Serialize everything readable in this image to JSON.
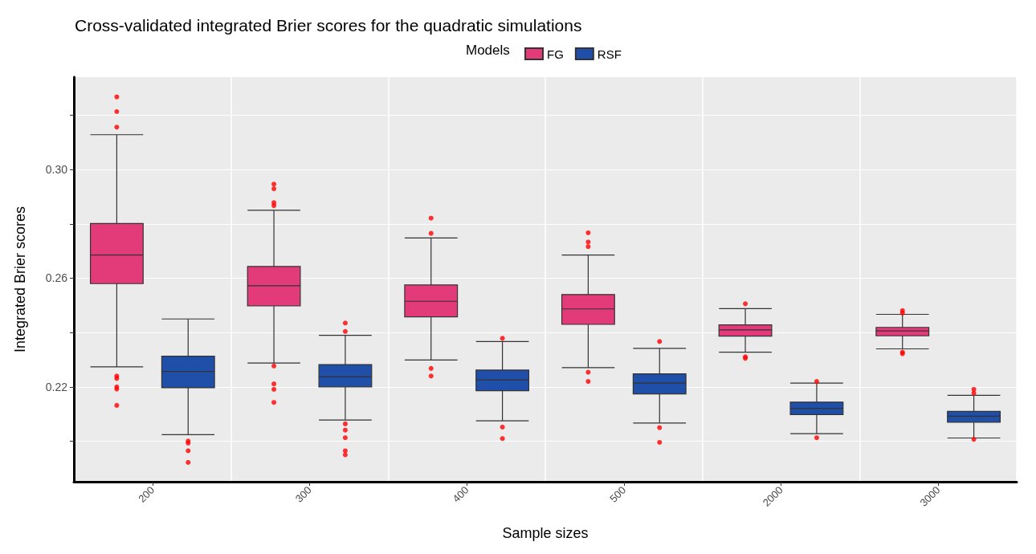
{
  "chart_data": {
    "type": "box",
    "title": "Cross-validated integrated Brier scores for the quadratic simulations",
    "xlabel": "Sample sizes",
    "ylabel": "Integrated Brier scores",
    "legend_title": "Models",
    "legend": "top",
    "grid": true,
    "categories": [
      "200",
      "300",
      "400",
      "500",
      "2000",
      "3000"
    ],
    "ylim": [
      0.1851,
      0.334
    ],
    "yticks": [
      {
        "value": 0.2,
        "label": null
      },
      0.22,
      {
        "value": 0.24,
        "label": null
      },
      0.26,
      {
        "value": 0.28,
        "label": null
      },
      {
        "value": 0.3,
        "label": "0.30"
      },
      {
        "value": 0.32,
        "label": null
      }
    ],
    "series": [
      {
        "name": "FG",
        "color": "#e33b79",
        "boxes": [
          {
            "low": 0.2274,
            "q1": 0.258,
            "median": 0.2685,
            "q3": 0.2801,
            "high": 0.3128,
            "outliers": [
              0.3267,
              0.3213,
              0.3156,
              0.224,
              0.2231,
              0.22,
              0.2192,
              0.2132
            ]
          },
          {
            "low": 0.2288,
            "q1": 0.2498,
            "median": 0.2572,
            "q3": 0.2643,
            "high": 0.285,
            "outliers": [
              0.2946,
              0.2929,
              0.2878,
              0.2867,
              0.2277,
              0.2211,
              0.2191,
              0.2143
            ]
          },
          {
            "low": 0.2299,
            "q1": 0.2458,
            "median": 0.2515,
            "q3": 0.2575,
            "high": 0.2748,
            "outliers": [
              0.2821,
              0.2765,
              0.2268,
              0.224
            ]
          },
          {
            "low": 0.2271,
            "q1": 0.243,
            "median": 0.2487,
            "q3": 0.254,
            "high": 0.2685,
            "outliers": [
              0.2767,
              0.2733,
              0.2716,
              0.2254,
              0.222
            ]
          },
          {
            "low": 0.2328,
            "q1": 0.2387,
            "median": 0.241,
            "q3": 0.2428,
            "high": 0.2488,
            "outliers": [
              0.2506,
              0.2311,
              0.2305
            ]
          },
          {
            "low": 0.234,
            "q1": 0.2388,
            "median": 0.2406,
            "q3": 0.2419,
            "high": 0.2467,
            "outliers": [
              0.2481,
              0.2472,
              0.2328,
              0.2322
            ]
          }
        ]
      },
      {
        "name": "RSF",
        "color": "#1f4fa8",
        "boxes": [
          {
            "low": 0.2024,
            "q1": 0.2197,
            "median": 0.2257,
            "q3": 0.2313,
            "high": 0.245,
            "outliers": [
              0.2001,
              0.1993,
              0.1965,
              0.1922
            ]
          },
          {
            "low": 0.2078,
            "q1": 0.22,
            "median": 0.2237,
            "q3": 0.2282,
            "high": 0.239,
            "outliers": [
              0.2435,
              0.2404,
              0.2064,
              0.2041,
              0.2013,
              0.1965,
              0.195
            ]
          },
          {
            "low": 0.2075,
            "q1": 0.2186,
            "median": 0.2226,
            "q3": 0.2262,
            "high": 0.2367,
            "outliers": [
              0.2379,
              0.2052,
              0.201
            ]
          },
          {
            "low": 0.2067,
            "q1": 0.2174,
            "median": 0.2214,
            "q3": 0.2248,
            "high": 0.2342,
            "outliers": [
              0.2367,
              0.205,
              0.1996
            ]
          },
          {
            "low": 0.2028,
            "q1": 0.2098,
            "median": 0.2121,
            "q3": 0.2144,
            "high": 0.2214,
            "outliers": [
              0.222,
              0.2013
            ]
          },
          {
            "low": 0.2012,
            "q1": 0.207,
            "median": 0.2092,
            "q3": 0.211,
            "high": 0.2169,
            "outliers": [
              0.2191,
              0.2177,
              0.2007
            ]
          }
        ]
      }
    ]
  }
}
